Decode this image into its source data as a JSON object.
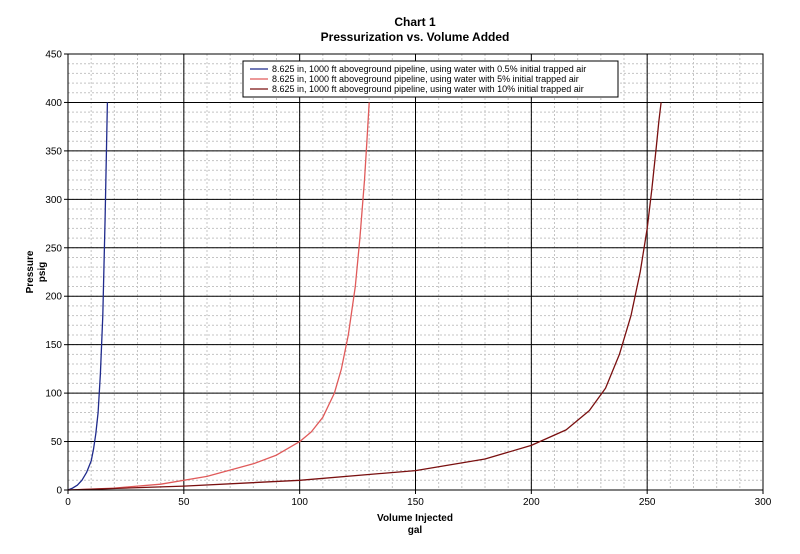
{
  "chart_data": {
    "type": "line",
    "title": "Chart 1",
    "subtitle": "Pressurization vs. Volume Added",
    "xlabel": "Volume Injected",
    "xunit": "gal",
    "ylabel": "Pressure",
    "yunit": "psig",
    "xlim": [
      0,
      300
    ],
    "ylim": [
      0,
      450
    ],
    "x_major_ticks": [
      0,
      50,
      100,
      150,
      200,
      250,
      300
    ],
    "y_major_ticks": [
      0,
      50,
      100,
      150,
      200,
      250,
      300,
      350,
      400,
      450
    ],
    "grid": true,
    "legend_position": "top-right",
    "series": [
      {
        "name": "8.625 in, 1000 ft aboveground pipeline, using water with 0.5% initial trapped air",
        "color": "#1f2a8c",
        "x": [
          0,
          2,
          4,
          6,
          8,
          10,
          11,
          12,
          13,
          14,
          15,
          16,
          17
        ],
        "y": [
          0,
          2,
          5,
          10,
          18,
          30,
          42,
          58,
          80,
          120,
          180,
          280,
          400
        ]
      },
      {
        "name": "8.625 in, 1000 ft aboveground pipeline, using water with 5% initial trapped air",
        "color": "#e05a5a",
        "x": [
          0,
          20,
          40,
          60,
          80,
          90,
          100,
          105,
          110,
          115,
          118,
          121,
          124,
          126,
          128,
          129,
          130
        ],
        "y": [
          0,
          2,
          6,
          14,
          27,
          36,
          50,
          60,
          75,
          100,
          125,
          160,
          210,
          260,
          320,
          360,
          400
        ]
      },
      {
        "name": "8.625 in, 1000 ft aboveground pipeline, using water with 10% initial trapped air",
        "color": "#7a1010",
        "x": [
          0,
          50,
          100,
          150,
          180,
          200,
          215,
          225,
          232,
          238,
          243,
          247,
          250,
          252,
          254,
          255,
          256
        ],
        "y": [
          0,
          4,
          10,
          20,
          32,
          46,
          62,
          82,
          105,
          140,
          180,
          225,
          270,
          310,
          355,
          380,
          400
        ]
      }
    ]
  }
}
